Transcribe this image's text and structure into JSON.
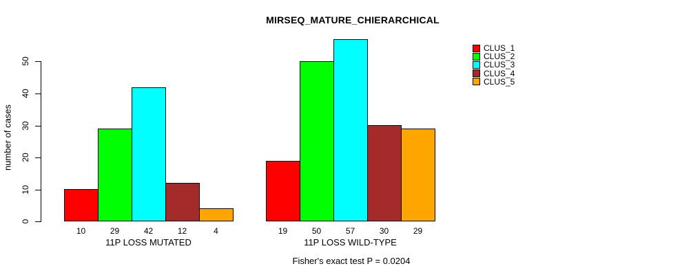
{
  "chart_data": {
    "type": "bar",
    "title": "MIRSEQ_MATURE_CHIERARCHICAL",
    "ylabel": "number of cases",
    "xlabel": "",
    "yticks": [
      0,
      10,
      20,
      30,
      40,
      50
    ],
    "ylim": [
      0,
      58
    ],
    "grid": false,
    "legend_position": "top-right",
    "categories": [
      "11P LOSS MUTATED",
      "11P LOSS WILD-TYPE"
    ],
    "series": [
      {
        "name": "CLUS_1",
        "color": "#FF0000",
        "values": [
          10,
          19
        ]
      },
      {
        "name": "CLUS_2",
        "color": "#00FF00",
        "values": [
          29,
          50
        ]
      },
      {
        "name": "CLUS_3",
        "color": "#00FFFF",
        "values": [
          42,
          57
        ]
      },
      {
        "name": "CLUS_4",
        "color": "#A52A2A",
        "values": [
          12,
          30
        ]
      },
      {
        "name": "CLUS_5",
        "color": "#FFA500",
        "values": [
          4,
          29
        ]
      }
    ],
    "bar_value_labels_shown": true,
    "caption": "Fisher's exact test P = 0.0204"
  }
}
